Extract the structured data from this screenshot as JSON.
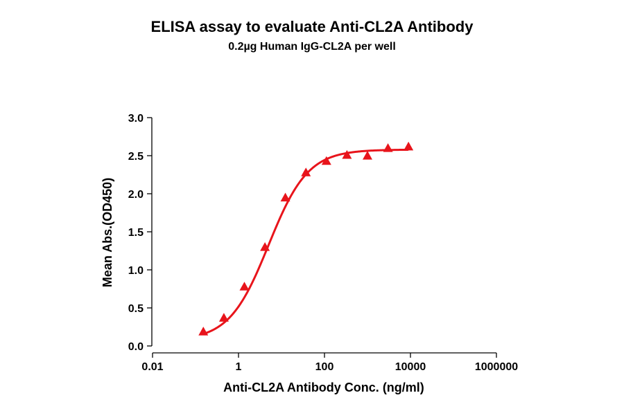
{
  "chart_data": {
    "type": "scatter",
    "title": "ELISA assay to evaluate Anti-CL2A Antibody",
    "subtitle": "0.2µg Human IgG-CL2A per well",
    "xlabel": "Anti-CL2A Antibody Conc. (ng/ml)",
    "ylabel": "Mean Abs.(OD450)",
    "x_scale": "log",
    "xlim": [
      0.01,
      1000000
    ],
    "ylim": [
      0,
      3.0
    ],
    "x_ticks": [
      0.01,
      1,
      100,
      10000,
      1000000
    ],
    "x_tick_labels": [
      "0.01",
      "1",
      "100",
      "10000",
      "1000000"
    ],
    "y_ticks": [
      0.0,
      0.5,
      1.0,
      1.5,
      2.0,
      2.5,
      3.0
    ],
    "y_tick_labels": [
      "0.0",
      "0.5",
      "1.0",
      "1.5",
      "2.0",
      "2.5",
      "3.0"
    ],
    "grid": false,
    "series": [
      {
        "marker": "triangle",
        "color": "#e8141b",
        "fit": "sigmoidal",
        "x": [
          0.152,
          0.457,
          1.37,
          4.12,
          12.3,
          37.0,
          111,
          333,
          1000,
          3000,
          9000
        ],
        "y": [
          0.19,
          0.37,
          0.78,
          1.3,
          1.95,
          2.28,
          2.43,
          2.51,
          2.5,
          2.6,
          2.62
        ]
      }
    ]
  }
}
